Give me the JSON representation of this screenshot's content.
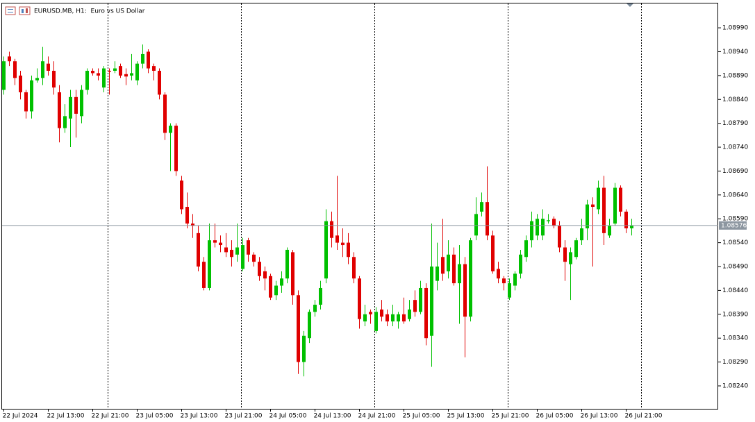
{
  "chart_data": {
    "type": "candlestick",
    "title": "EURUSD.MB, H1:  Euro vs US Dollar",
    "categories": [
      "22 Jul 2024",
      null,
      null,
      null,
      null,
      null,
      null,
      null,
      "22 Jul 13:00",
      null,
      null,
      null,
      null,
      null,
      null,
      null,
      "22 Jul 21:00",
      null,
      null,
      null,
      null,
      null,
      null,
      null,
      "23 Jul 05:00",
      null,
      null,
      null,
      null,
      null,
      null,
      null,
      "23 Jul 13:00",
      null,
      null,
      null,
      null,
      null,
      null,
      null,
      "23 Jul 21:00",
      null,
      null,
      null,
      null,
      null,
      null,
      null,
      "24 Jul 05:00",
      null,
      null,
      null,
      null,
      null,
      null,
      null,
      "24 Jul 13:00",
      null,
      null,
      null,
      null,
      null,
      null,
      null,
      "24 Jul 21:00",
      null,
      null,
      null,
      null,
      null,
      null,
      null,
      "25 Jul 05:00",
      null,
      null,
      null,
      null,
      null,
      null,
      null,
      "25 Jul 13:00",
      null,
      null,
      null,
      null,
      null,
      null,
      null,
      "25 Jul 21:00",
      null,
      null,
      null,
      null,
      null,
      null,
      null,
      "26 Jul 05:00",
      null,
      null,
      null,
      null,
      null,
      null,
      null,
      "26 Jul 13:00",
      null,
      null,
      null,
      null,
      null,
      null,
      null,
      "26 Jul 21:00",
      null
    ],
    "open": [
      1.0886,
      1.0893,
      1.0892,
      1.0889,
      1.08855,
      1.08815,
      1.0888,
      1.08885,
      1.08915,
      1.089,
      1.08855,
      1.0878,
      1.088,
      1.08845,
      1.08805,
      1.0886,
      1.089,
      1.08895,
      1.08865,
      1.089,
      1.089,
      1.0891,
      1.08893,
      1.0889,
      1.0888,
      1.08915,
      1.0894,
      1.0891,
      1.089,
      1.0885,
      1.0877,
      1.08785,
      1.0867,
      1.08615,
      1.0858,
      1.0856,
      1.085,
      1.08445,
      1.08545,
      1.0854,
      1.0853,
      1.08525,
      1.08515,
      1.08485,
      1.08545,
      1.08515,
      1.085,
      1.0848,
      1.0847,
      1.0843,
      1.0845,
      1.08465,
      1.0852,
      1.0843,
      1.0829,
      1.0834,
      1.08395,
      1.0841,
      1.08465,
      1.08585,
      1.08555,
      1.0854,
      1.0854,
      1.0851,
      1.08465,
      1.08375,
      1.08395,
      1.08355,
      1.084,
      1.0839,
      1.08375,
      1.08375,
      1.0839,
      1.0838,
      1.0842,
      1.08395,
      1.08445,
      1.08345,
      1.0846,
      1.0851,
      1.0848,
      1.08515,
      1.08455,
      1.08495,
      1.08385,
      1.08555,
      1.08605,
      1.08625,
      1.08555,
      1.08485,
      1.08465,
      1.08425,
      1.0845,
      1.08475,
      1.0851,
      1.08545,
      1.08555,
      1.08555,
      1.08585,
      1.0859,
      1.08575,
      1.0853,
      1.08495,
      1.0851,
      1.08545,
      1.0857,
      1.0862,
      1.0861,
      1.08655,
      1.08555,
      1.0858,
      1.08655,
      1.08605,
      1.0857
    ],
    "high": [
      1.0893,
      1.0894,
      1.08925,
      1.089,
      1.0886,
      1.0889,
      1.08905,
      1.0895,
      1.0893,
      1.0892,
      1.0887,
      1.0883,
      1.0886,
      1.0886,
      1.0887,
      1.08905,
      1.08905,
      1.08905,
      1.0891,
      1.08905,
      1.0892,
      1.08915,
      1.08905,
      1.08935,
      1.0892,
      1.08955,
      1.08945,
      1.08915,
      1.08905,
      1.08855,
      1.0879,
      1.0879,
      1.0868,
      1.08645,
      1.086,
      1.08575,
      1.0851,
      1.0858,
      1.0858,
      1.08555,
      1.0856,
      1.08545,
      1.0858,
      1.0855,
      1.0855,
      1.0852,
      1.0851,
      1.0849,
      1.08475,
      1.0846,
      1.0848,
      1.0853,
      1.08525,
      1.0844,
      1.08355,
      1.084,
      1.0842,
      1.0846,
      1.0861,
      1.08605,
      1.0868,
      1.0857,
      1.0856,
      1.0852,
      1.0847,
      1.0841,
      1.084,
      1.08405,
      1.0842,
      1.084,
      1.0841,
      1.08395,
      1.08425,
      1.0842,
      1.0844,
      1.0846,
      1.08455,
      1.0858,
      1.0854,
      1.0859,
      1.08545,
      1.0853,
      1.08535,
      1.0851,
      1.0855,
      1.08635,
      1.08645,
      1.087,
      1.08565,
      1.085,
      1.0847,
      1.08465,
      1.0848,
      1.08525,
      1.08555,
      1.08605,
      1.086,
      1.0861,
      1.086,
      1.08595,
      1.08585,
      1.08545,
      1.0853,
      1.0855,
      1.0859,
      1.0863,
      1.08635,
      1.0867,
      1.0868,
      1.0859,
      1.08665,
      1.0866,
      1.0861,
      1.0859
    ],
    "low": [
      1.0885,
      1.0891,
      1.0887,
      1.0884,
      1.088,
      1.088,
      1.08875,
      1.0887,
      1.0889,
      1.0885,
      1.0875,
      1.0877,
      1.0874,
      1.0876,
      1.0879,
      1.0885,
      1.0889,
      1.0888,
      1.08855,
      1.0885,
      1.08895,
      1.08885,
      1.0887,
      1.0888,
      1.0887,
      1.08905,
      1.08895,
      1.0888,
      1.0884,
      1.08755,
      1.0869,
      1.0868,
      1.086,
      1.0857,
      1.0855,
      1.0848,
      1.0844,
      1.0844,
      1.0853,
      1.0852,
      1.0851,
      1.0849,
      1.085,
      1.0848,
      1.085,
      1.0849,
      1.0846,
      1.0844,
      1.0842,
      1.0842,
      1.08435,
      1.08455,
      1.0841,
      1.08265,
      1.0826,
      1.0833,
      1.08385,
      1.084,
      1.08455,
      1.0853,
      1.08525,
      1.0851,
      1.08495,
      1.08455,
      1.0836,
      1.08365,
      1.0837,
      1.0835,
      1.08375,
      1.08365,
      1.08365,
      1.0836,
      1.0837,
      1.08375,
      1.08385,
      1.0839,
      1.08325,
      1.0828,
      1.0844,
      1.0846,
      1.08465,
      1.0845,
      1.0837,
      1.083,
      1.08375,
      1.08545,
      1.08595,
      1.08545,
      1.08475,
      1.08455,
      1.0844,
      1.0842,
      1.0844,
      1.08465,
      1.085,
      1.0853,
      1.08545,
      1.08545,
      1.0858,
      1.0857,
      1.0852,
      1.0846,
      1.0842,
      1.08505,
      1.08535,
      1.08545,
      1.0849,
      1.086,
      1.08535,
      1.0855,
      1.08575,
      1.08595,
      1.0856,
      1.08555
    ],
    "close": [
      1.0892,
      1.0892,
      1.08885,
      1.08855,
      1.08815,
      1.0888,
      1.08885,
      1.0892,
      1.089,
      1.08865,
      1.0878,
      1.08805,
      1.08845,
      1.0881,
      1.0886,
      1.089,
      1.08895,
      1.0889,
      1.08905,
      1.08898,
      1.08905,
      1.0889,
      1.08888,
      1.08895,
      1.08915,
      1.08935,
      1.08905,
      1.089,
      1.0885,
      1.0877,
      1.08785,
      1.0869,
      1.0861,
      1.0858,
      1.08575,
      1.0849,
      1.08445,
      1.08545,
      1.0854,
      1.08535,
      1.0852,
      1.0851,
      1.0853,
      1.08535,
      1.08515,
      1.085,
      1.0847,
      1.08465,
      1.08425,
      1.0845,
      1.08465,
      1.08525,
      1.0843,
      1.0829,
      1.08345,
      1.08395,
      1.0841,
      1.08445,
      1.08585,
      1.0855,
      1.0854,
      1.08535,
      1.0851,
      1.08465,
      1.0838,
      1.0839,
      1.0839,
      1.08395,
      1.08385,
      1.08375,
      1.0839,
      1.0839,
      1.08375,
      1.084,
      1.08395,
      1.08445,
      1.0834,
      1.0849,
      1.0849,
      1.08475,
      1.08515,
      1.08455,
      1.08495,
      1.08385,
      1.08545,
      1.086,
      1.08625,
      1.08555,
      1.0848,
      1.08465,
      1.08455,
      1.08455,
      1.08475,
      1.08515,
      1.08545,
      1.08585,
      1.0859,
      1.0859,
      1.08587,
      1.08575,
      1.0853,
      1.085,
      1.0852,
      1.08545,
      1.0857,
      1.0862,
      1.08615,
      1.08655,
      1.0856,
      1.08575,
      1.08655,
      1.08605,
      1.0857,
      1.08576
    ],
    "up_color": "#00c000",
    "down_color": "#e00000",
    "ylim": [
      1.08192,
      1.09041
    ],
    "yticks": [
      {
        "value": 1.0899,
        "label": "1.08990"
      },
      {
        "value": 1.0894,
        "label": "1.08940"
      },
      {
        "value": 1.0889,
        "label": "1.08890"
      },
      {
        "value": 1.0884,
        "label": "1.08840"
      },
      {
        "value": 1.0879,
        "label": "1.08790"
      },
      {
        "value": 1.0874,
        "label": "1.08740"
      },
      {
        "value": 1.0869,
        "label": "1.08690"
      },
      {
        "value": 1.0864,
        "label": "1.08640"
      },
      {
        "value": 1.0859,
        "label": "1.08590"
      },
      {
        "value": 1.0854,
        "label": "1.08540"
      },
      {
        "value": 1.0849,
        "label": "1.08490"
      },
      {
        "value": 1.0844,
        "label": "1.08440"
      },
      {
        "value": 1.0839,
        "label": "1.08390"
      },
      {
        "value": 1.0834,
        "label": "1.08340"
      },
      {
        "value": 1.0829,
        "label": "1.08290"
      },
      {
        "value": 1.0824,
        "label": "1.08240"
      }
    ],
    "last_price": {
      "value": 1.08576,
      "label": "1.08576"
    }
  }
}
